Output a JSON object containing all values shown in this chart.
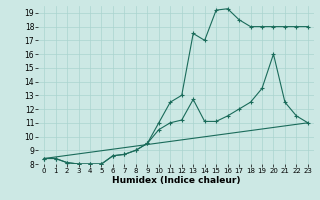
{
  "xlabel": "Humidex (Indice chaleur)",
  "background_color": "#cce8e4",
  "grid_color": "#aad4cf",
  "line_color": "#1a6b5a",
  "xlim": [
    -0.5,
    23.5
  ],
  "ylim": [
    8,
    19.5
  ],
  "xticks": [
    0,
    1,
    2,
    3,
    4,
    5,
    6,
    7,
    8,
    9,
    10,
    11,
    12,
    13,
    14,
    15,
    16,
    17,
    18,
    19,
    20,
    21,
    22,
    23
  ],
  "yticks": [
    8,
    9,
    10,
    11,
    12,
    13,
    14,
    15,
    16,
    17,
    18,
    19
  ],
  "series1_x": [
    0,
    1,
    2,
    3,
    4,
    5,
    6,
    7,
    8,
    9,
    10,
    11,
    12,
    13,
    14,
    15,
    16,
    17,
    18,
    19,
    20,
    21,
    22,
    23
  ],
  "series1_y": [
    8.4,
    8.4,
    8.1,
    8.0,
    8.0,
    8.0,
    8.6,
    8.7,
    9.0,
    9.5,
    11.0,
    12.5,
    13.0,
    17.5,
    17.0,
    19.2,
    19.3,
    18.5,
    18.0,
    18.0,
    18.0,
    18.0,
    18.0,
    18.0
  ],
  "series2_x": [
    0,
    1,
    2,
    3,
    4,
    5,
    6,
    7,
    8,
    9,
    10,
    11,
    12,
    13,
    14,
    15,
    16,
    17,
    18,
    19,
    20,
    21,
    22,
    23
  ],
  "series2_y": [
    8.4,
    8.4,
    8.1,
    8.0,
    8.0,
    8.0,
    8.6,
    8.7,
    9.0,
    9.5,
    10.5,
    11.0,
    11.2,
    12.7,
    11.1,
    11.1,
    11.5,
    12.0,
    12.5,
    13.5,
    16.0,
    12.5,
    11.5,
    11.0
  ],
  "series3_x": [
    0,
    23
  ],
  "series3_y": [
    8.4,
    11.0
  ]
}
